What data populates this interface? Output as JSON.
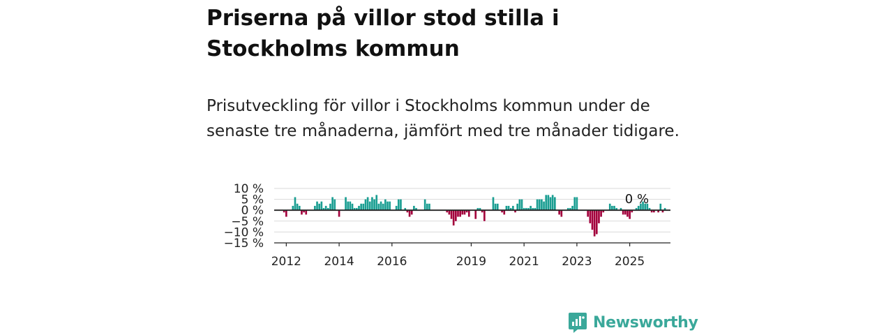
{
  "title": "Priserna på villor stod stilla i Stockholms kommun",
  "subtitle": "Prisutveckling för villor i Stockholms kommun under de senaste tre månaderna, jämfört med tre månader tidigare.",
  "brand": {
    "name": "Newsworthy",
    "color": "#3aa89a",
    "icon": "newsworthy-logo-icon"
  },
  "colors": {
    "positive": "#1a9e92",
    "negative": "#a3003c",
    "grid": "#d9d9d9",
    "zero_line": "#222222"
  },
  "chart_data": {
    "type": "bar",
    "start": "2011-09",
    "frequency": "monthly",
    "ylim": [
      -15,
      10
    ],
    "yticks": [
      10,
      5,
      0,
      -5,
      -10,
      -15
    ],
    "ytick_labels": [
      "10 %",
      "5 %",
      "0 %",
      "−5 %",
      "−10 %",
      "−15 %"
    ],
    "xtick_labels": [
      "2012",
      "2014",
      "2016",
      "2019",
      "2021",
      "2023",
      "2025"
    ],
    "xtick_months": [
      "2012-01",
      "2014-01",
      "2016-01",
      "2019-01",
      "2021-01",
      "2023-01",
      "2025-01"
    ],
    "annotation": {
      "text": "0 %",
      "month": "2025-03"
    },
    "values": [
      0,
      0,
      0,
      -1,
      -3,
      0,
      0,
      2,
      6,
      3,
      2,
      -2,
      -1,
      -2,
      0,
      0,
      0,
      2,
      4,
      3,
      4,
      1,
      2,
      1,
      3,
      6,
      5,
      0,
      -3,
      0,
      0,
      6,
      4,
      4,
      3,
      1,
      1,
      2,
      3,
      3,
      5,
      6,
      4,
      6,
      5,
      7,
      3,
      4,
      3,
      5,
      4,
      4,
      0,
      0,
      2,
      5,
      5,
      0,
      1,
      -1,
      -3,
      -2,
      2,
      1,
      0,
      0,
      0,
      5,
      3,
      3,
      0,
      0,
      0,
      0,
      0,
      0,
      0,
      -1,
      -2,
      -4,
      -7,
      -5,
      -3,
      -3,
      -2,
      -2,
      -1,
      -3,
      0,
      0,
      -4,
      1,
      1,
      -1,
      -5,
      0,
      0,
      0,
      6,
      3,
      3,
      0,
      -1,
      -2,
      2,
      2,
      1,
      2,
      -1,
      3,
      5,
      5,
      1,
      1,
      1,
      2,
      1,
      1,
      5,
      5,
      5,
      4,
      7,
      7,
      6,
      7,
      6,
      0,
      -2,
      -3,
      0,
      0,
      1,
      1,
      2,
      6,
      6,
      0,
      0,
      0,
      0,
      -3,
      -6,
      -9,
      -12,
      -11,
      -6,
      -3,
      -1,
      0,
      0,
      3,
      2,
      2,
      1,
      0,
      1,
      -2,
      -2,
      -3,
      -4,
      -1,
      0,
      1,
      2,
      3,
      4,
      3,
      3,
      1,
      -1,
      -1,
      0,
      -1,
      3,
      -1,
      1
    ]
  }
}
